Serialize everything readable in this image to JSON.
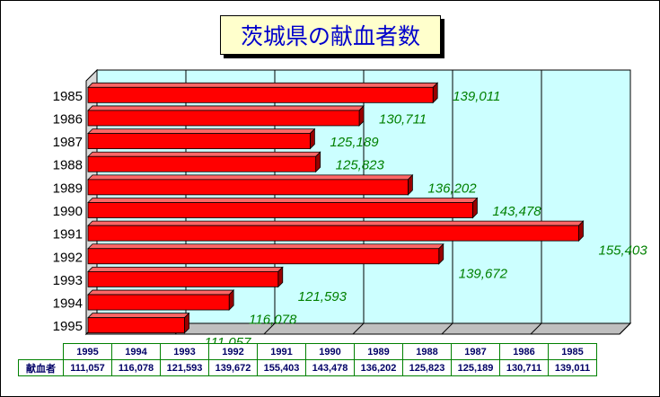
{
  "title": "茨城県の献血者数",
  "chart_data": {
    "type": "bar",
    "orientation": "horizontal",
    "categories": [
      "1985",
      "1986",
      "1987",
      "1988",
      "1989",
      "1990",
      "1991",
      "1992",
      "1993",
      "1994",
      "1995"
    ],
    "values": [
      139011,
      130711,
      125189,
      125823,
      136202,
      143478,
      155403,
      139672,
      121593,
      116078,
      111057
    ],
    "data_labels": [
      "139,011",
      "130,711",
      "125,189",
      "125,823",
      "136,202",
      "143,478",
      "155,403",
      "139,672",
      "121,593",
      "116,078",
      "111,057"
    ],
    "xlim": [
      100000,
      160000
    ],
    "grid": true,
    "bar_color": "#ff0000",
    "plot_background": "#ccffff",
    "label_color": "#008000"
  },
  "table": {
    "row_label": "献血者",
    "years": [
      "1995",
      "1994",
      "1993",
      "1992",
      "1991",
      "1990",
      "1989",
      "1988",
      "1987",
      "1986",
      "1985"
    ],
    "values": [
      "111,057",
      "116,078",
      "121,593",
      "139,672",
      "155,403",
      "143,478",
      "136,202",
      "125,823",
      "125,189",
      "130,711",
      "139,011"
    ]
  }
}
